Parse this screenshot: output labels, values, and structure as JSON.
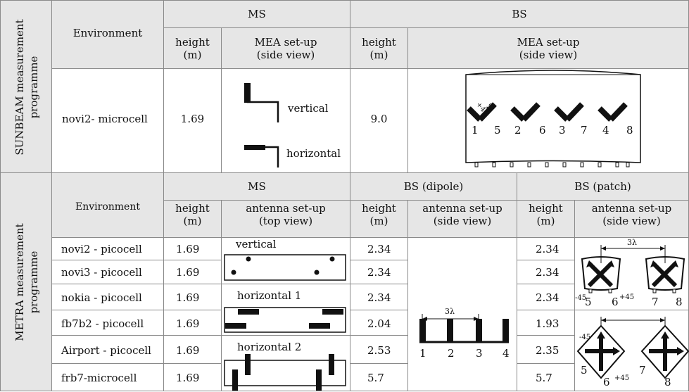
{
  "sunbeam": {
    "title_line1": "SUNBEAM measurement",
    "title_line2": "programme",
    "environment_header": "Environment",
    "ms_header": "MS",
    "bs_header": "BS",
    "ms_height_header": "height\n(m)",
    "ms_setup_header": "MEA set-up\n(side view)",
    "bs_height_header": "height\n(m)",
    "bs_setup_header": "MEA set-up\n(side view)",
    "row": {
      "environment": "novi2- microcell",
      "ms_height": "1.69",
      "bs_height": "9.0"
    },
    "ms_labels": {
      "vertical": "vertical",
      "horizontal": "horizontal"
    },
    "bs_pol_labels": {
      "plus": "+45",
      "minus": "-45"
    },
    "bs_numbers": [
      "1",
      "5",
      "2",
      "6",
      "3",
      "7",
      "4",
      "8"
    ]
  },
  "metra": {
    "title_line1": "METRA measurement",
    "title_line2": "programme",
    "environment_header": "Environment",
    "ms_header": "MS",
    "bs_dipole_header": "BS (dipole)",
    "bs_patch_header": "BS (patch)",
    "ms_height_header": "height\n(m)",
    "ms_setup_header": "antenna set-up\n(top view)",
    "dipole_height_header": "height\n(m)",
    "dipole_setup_header": "antenna set-up\n(side view)",
    "patch_height_header": "height\n(m)",
    "patch_setup_header": "antenna set-up\n(side view)",
    "rows": [
      {
        "environment": "novi2 - picocell",
        "ms_height": "1.69",
        "dipole_height": "2.34",
        "patch_height": "2.34"
      },
      {
        "environment": "novi3 - picocell",
        "ms_height": "1.69",
        "dipole_height": "2.34",
        "patch_height": "2.34"
      },
      {
        "environment": "nokia - picocell",
        "ms_height": "1.69",
        "dipole_height": "2.34",
        "patch_height": "2.34"
      },
      {
        "environment": "fb7b2 - picocell",
        "ms_height": "1.69",
        "dipole_height": "2.04",
        "patch_height": "1.93"
      },
      {
        "environment": "Airport - picocell",
        "ms_height": "1.69",
        "dipole_height": "2.53",
        "patch_height": "2.35"
      },
      {
        "environment": "frb7-microcell",
        "ms_height": "1.69",
        "dipole_height": "5.7",
        "patch_height": "5.7"
      }
    ],
    "ms_setup_labels": {
      "vertical": "vertical",
      "horizontal1": "horizontal 1",
      "horizontal2": "horizontal 2"
    },
    "dipole_spacing": "3λ",
    "dipole_numbers": [
      "1",
      "2",
      "3",
      "4"
    ],
    "patch_spacing": "3λ",
    "patch_top_labels": {
      "minus": "-45",
      "n5": "5",
      "n6": "6",
      "plus": "+45",
      "n7": "7",
      "n8": "8"
    },
    "patch_bottom_labels": {
      "minus": "-45",
      "n5": "5",
      "n6": "6",
      "plus": "+45",
      "n7": "7",
      "n8": "8"
    }
  }
}
